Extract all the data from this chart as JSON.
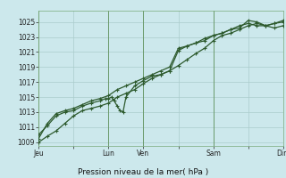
{
  "title": "Pression niveau de la mer( hPa )",
  "bg_color": "#cce8ec",
  "grid_color": "#aacccc",
  "line_color": "#2d5a2d",
  "ylim": [
    1008.5,
    1026.5
  ],
  "yticks": [
    1009,
    1011,
    1013,
    1015,
    1017,
    1019,
    1021,
    1023,
    1025
  ],
  "xtick_labels": [
    "Jeu",
    "",
    "Lun",
    "Ven",
    "",
    "Sam",
    "",
    "Dim"
  ],
  "xtick_positions": [
    0,
    24,
    48,
    72,
    96,
    120,
    144,
    168
  ],
  "vlines": [
    0,
    48,
    72,
    120,
    168
  ],
  "line1_x": [
    0,
    6,
    12,
    18,
    24,
    30,
    36,
    42,
    48,
    54,
    60,
    66,
    72,
    78,
    84,
    90,
    96,
    102,
    108,
    114,
    120,
    126,
    132,
    138,
    144,
    150,
    156,
    162,
    168
  ],
  "line1_y": [
    1009.0,
    1009.8,
    1010.5,
    1011.5,
    1012.5,
    1013.2,
    1013.5,
    1013.8,
    1014.2,
    1015.0,
    1015.5,
    1016.0,
    1016.8,
    1017.5,
    1018.0,
    1018.5,
    1019.2,
    1020.0,
    1020.8,
    1021.5,
    1022.5,
    1023.2,
    1023.5,
    1024.0,
    1024.5,
    1024.8,
    1024.5,
    1024.8,
    1025.2
  ],
  "line2_x": [
    0,
    6,
    12,
    18,
    24,
    30,
    36,
    42,
    46,
    48,
    50,
    52,
    54,
    56,
    58,
    60,
    66,
    72,
    78,
    84,
    90,
    96,
    102,
    108,
    114,
    120,
    126,
    132,
    138,
    144,
    150,
    156,
    162,
    168
  ],
  "line2_y": [
    1010.0,
    1011.2,
    1012.5,
    1013.0,
    1013.2,
    1013.8,
    1014.2,
    1014.5,
    1014.8,
    1014.8,
    1015.0,
    1014.5,
    1013.8,
    1013.2,
    1013.0,
    1015.0,
    1016.5,
    1017.2,
    1017.8,
    1018.0,
    1018.5,
    1021.2,
    1021.8,
    1022.2,
    1022.8,
    1023.2,
    1023.5,
    1024.0,
    1024.5,
    1024.8,
    1024.5,
    1024.5,
    1024.2,
    1024.5
  ],
  "line3_x": [
    0,
    6,
    12,
    18,
    24,
    30,
    36,
    42,
    48,
    54,
    60,
    66,
    72,
    78,
    84,
    90,
    96,
    102,
    108,
    114,
    120,
    126,
    132,
    138,
    144,
    150,
    156,
    162,
    168
  ],
  "line3_y": [
    1009.5,
    1011.5,
    1012.8,
    1013.2,
    1013.5,
    1014.0,
    1014.5,
    1014.8,
    1015.2,
    1016.0,
    1016.5,
    1017.0,
    1017.5,
    1018.0,
    1018.5,
    1019.0,
    1021.5,
    1021.8,
    1022.2,
    1022.5,
    1023.2,
    1023.5,
    1024.0,
    1024.2,
    1025.2,
    1025.0,
    1024.5,
    1024.8,
    1025.0
  ]
}
